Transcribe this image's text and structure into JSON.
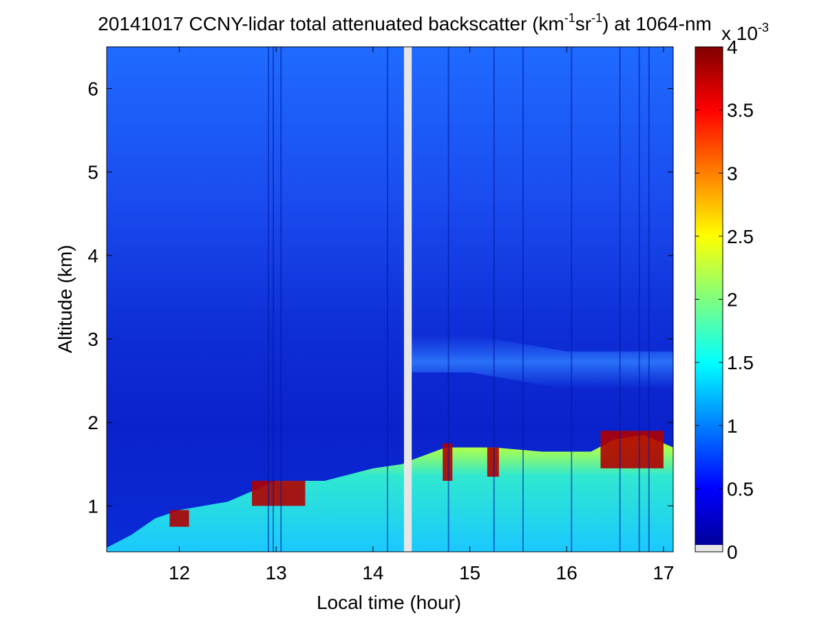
{
  "chart_data": {
    "type": "heatmap",
    "title": {
      "prefix": "20141017 CCNY-lidar total attenuated backscatter (km",
      "sup1": "-1",
      "mid": "sr",
      "sup2": "-1",
      "suffix": ") at 1064-nm"
    },
    "xlabel": "Local time (hour)",
    "ylabel": "Altitude (km)",
    "xlim": [
      11.25,
      17.1
    ],
    "ylim": [
      0.45,
      6.5
    ],
    "x_ticks": [
      12,
      13,
      14,
      15,
      16,
      17
    ],
    "y_ticks": [
      1,
      2,
      3,
      4,
      5,
      6
    ],
    "colorbar": {
      "min": 0,
      "max": 4,
      "ticks": [
        "0",
        "0.5",
        "1",
        "1.5",
        "2",
        "2.5",
        "3",
        "3.5",
        "4"
      ],
      "exponent_base": "x 10",
      "exponent_power": "-3"
    },
    "data_gap": [
      14.32,
      14.4
    ],
    "boundary_layer": {
      "x": [
        11.25,
        11.5,
        11.75,
        12.0,
        12.5,
        13.0,
        13.5,
        14.0,
        14.3,
        14.4,
        14.75,
        15.25,
        15.75,
        16.25,
        16.5,
        16.8,
        17.1
      ],
      "top": [
        0.5,
        0.65,
        0.85,
        0.95,
        1.05,
        1.3,
        1.3,
        1.45,
        1.5,
        1.55,
        1.7,
        1.7,
        1.65,
        1.65,
        1.8,
        1.85,
        1.7
      ]
    },
    "elevated_layer": {
      "x": [
        14.4,
        15.0,
        15.5,
        16.0,
        16.5,
        17.1
      ],
      "altitude": [
        2.8,
        2.8,
        2.7,
        2.6,
        2.6,
        2.6
      ]
    },
    "high_signal_patches": [
      {
        "x": [
          11.9,
          12.1
        ],
        "alt": [
          0.75,
          0.95
        ]
      },
      {
        "x": [
          12.75,
          13.3
        ],
        "alt": [
          1.0,
          1.3
        ]
      },
      {
        "x": [
          14.72,
          14.82
        ],
        "alt": [
          1.3,
          1.75
        ]
      },
      {
        "x": [
          15.18,
          15.3
        ],
        "alt": [
          1.35,
          1.7
        ]
      },
      {
        "x": [
          16.35,
          17.0
        ],
        "alt": [
          1.45,
          1.9
        ]
      }
    ]
  }
}
